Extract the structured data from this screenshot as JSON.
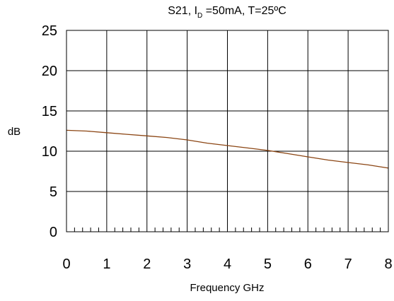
{
  "chart_data": {
    "type": "line",
    "title": {
      "main": "S21, I",
      "subscript": "D",
      "rest": " =50mA, T=25ºC"
    },
    "xlabel": "Frequency GHz",
    "ylabel": "dB",
    "xlim": [
      0,
      8
    ],
    "ylim": [
      0,
      25
    ],
    "x_ticks": [
      "0",
      "1",
      "2",
      "3",
      "4",
      "5",
      "6",
      "7",
      "8"
    ],
    "y_ticks": [
      "0",
      "5",
      "10",
      "15",
      "20",
      "25"
    ],
    "grid": true,
    "series": [
      {
        "color": "#8b4513",
        "x": [
          0,
          0.5,
          1,
          1.5,
          2,
          2.5,
          3,
          3.5,
          4,
          4.5,
          5,
          5.5,
          6,
          6.5,
          7,
          7.5,
          8
        ],
        "y": [
          12.6,
          12.5,
          12.3,
          12.1,
          11.9,
          11.7,
          11.4,
          11.0,
          10.7,
          10.4,
          10.1,
          9.7,
          9.3,
          8.9,
          8.6,
          8.3,
          7.9
        ]
      }
    ]
  }
}
